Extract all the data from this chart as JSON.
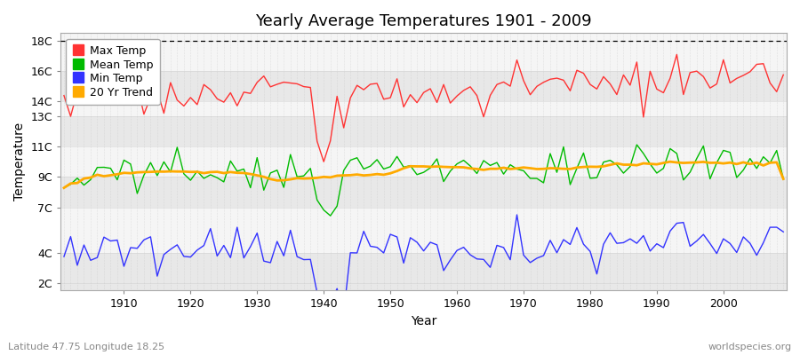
{
  "title": "Yearly Average Temperatures 1901 - 2009",
  "xlabel": "Year",
  "ylabel": "Temperature",
  "x_start": 1901,
  "x_end": 2009,
  "y_ticks": [
    2,
    4,
    7,
    9,
    11,
    13,
    14,
    16,
    18
  ],
  "y_tick_labels": [
    "2C",
    "4C",
    "7C",
    "9C",
    "11C",
    "13C",
    "14C",
    "16C",
    "18C"
  ],
  "ylim": [
    1.5,
    18.5
  ],
  "xlim": [
    1900.5,
    2009.5
  ],
  "x_ticks": [
    1910,
    1920,
    1930,
    1940,
    1950,
    1960,
    1970,
    1980,
    1990,
    2000
  ],
  "background_color": "#ffffff",
  "plot_bg_color": "#ffffff",
  "band_colors": [
    "#e8e8e8",
    "#f5f5f5"
  ],
  "grid_color": "#bbbbbb",
  "max_temp_color": "#ff3333",
  "mean_temp_color": "#00bb00",
  "min_temp_color": "#3333ff",
  "trend_color": "#ffaa00",
  "legend_labels": [
    "Max Temp",
    "Mean Temp",
    "Min Temp",
    "20 Yr Trend"
  ],
  "subtitle": "Latitude 47.75 Longitude 18.25",
  "watermark": "worldspecies.org",
  "title_fontsize": 13,
  "axis_fontsize": 9,
  "legend_fontsize": 9,
  "dashed_top_line_y": 18,
  "band_boundaries": [
    2,
    4,
    7,
    9,
    11,
    13,
    14,
    16,
    18
  ],
  "max_temp_base": 14.2,
  "mean_temp_base": 9.2,
  "min_temp_base": 4.0
}
